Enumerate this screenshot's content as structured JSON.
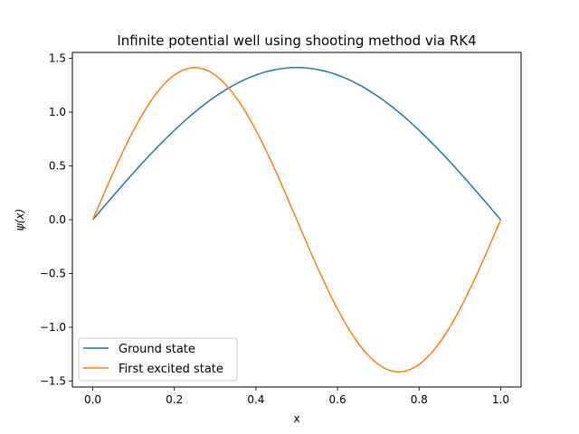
{
  "chart_data": {
    "type": "line",
    "title": "Infinite potential well using shooting method via RK4",
    "xlabel": "x",
    "ylabel": "ψ(x)",
    "xlim": [
      -0.05,
      1.05
    ],
    "ylim": [
      -1.555,
      1.555
    ],
    "xticks": [
      0.0,
      0.2,
      0.4,
      0.6,
      0.8,
      1.0
    ],
    "xtick_labels": [
      "0.0",
      "0.2",
      "0.4",
      "0.6",
      "0.8",
      "1.0"
    ],
    "yticks": [
      -1.5,
      -1.0,
      -0.5,
      0.0,
      0.5,
      1.0,
      1.5
    ],
    "ytick_labels": [
      "−1.5",
      "−1.0",
      "−0.5",
      "0.0",
      "0.5",
      "1.0",
      "1.5"
    ],
    "grid": false,
    "legend_position": "lower-left",
    "x": [
      0,
      0.05,
      0.1,
      0.15,
      0.2,
      0.25,
      0.3,
      0.35,
      0.4,
      0.45,
      0.5,
      0.55,
      0.6,
      0.65,
      0.7,
      0.75,
      0.8,
      0.85,
      0.9,
      0.95,
      1.0
    ],
    "series": [
      {
        "name": "Ground state",
        "color": "#1f77b4",
        "values": [
          0,
          0.221,
          0.437,
          0.642,
          0.831,
          1.0,
          1.144,
          1.26,
          1.345,
          1.397,
          1.414,
          1.397,
          1.345,
          1.26,
          1.144,
          1.0,
          0.831,
          0.642,
          0.437,
          0.221,
          0
        ]
      },
      {
        "name": "First excited state",
        "color": "#ff7f0e",
        "values": [
          0,
          0.437,
          0.831,
          1.144,
          1.345,
          1.414,
          1.345,
          1.144,
          0.831,
          0.437,
          0,
          -0.437,
          -0.831,
          -1.144,
          -1.345,
          -1.414,
          -1.345,
          -1.144,
          -0.831,
          -0.437,
          0
        ]
      }
    ]
  }
}
